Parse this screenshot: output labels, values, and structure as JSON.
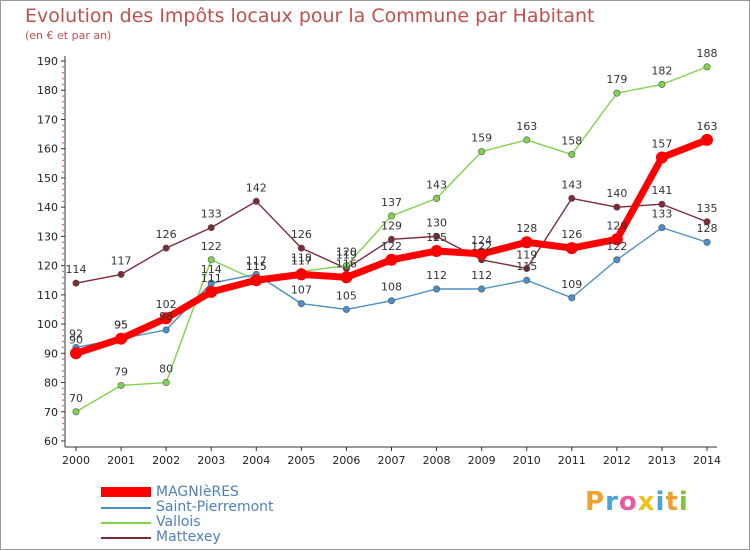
{
  "header": {
    "title": "Evolution des Impôts locaux pour la Commune par Habitant",
    "subtitle": "(en € et par an)"
  },
  "brand": {
    "letters": [
      "P",
      "r",
      "o",
      "x",
      "i",
      "t",
      "i"
    ],
    "colors": [
      "#f0a030",
      "#4aa3df",
      "#e85a9a",
      "#f0c020",
      "#4aa3df",
      "#f0a030",
      "#7fc241"
    ]
  },
  "chart_data": {
    "type": "line",
    "title": "Evolution des Impôts locaux pour la Commune par Habitant",
    "subtitle": "(en € et par an)",
    "xlabel": "",
    "ylabel": "",
    "x": [
      "2000",
      "2001",
      "2002",
      "2003",
      "2004",
      "2005",
      "2006",
      "2007",
      "2008",
      "2009",
      "2010",
      "2011",
      "2012",
      "2013",
      "2014"
    ],
    "ylim": [
      60,
      190
    ],
    "yticks": [
      60,
      70,
      80,
      90,
      100,
      110,
      120,
      130,
      140,
      150,
      160,
      170,
      180,
      190
    ],
    "grid": false,
    "legend_position": "bottom-left",
    "series": [
      {
        "name": "MAGNIèRES",
        "color": "#ff0000",
        "values": [
          90,
          95,
          102,
          111,
          115,
          117,
          116,
          122,
          125,
          124,
          128,
          126,
          129,
          157,
          163
        ],
        "labels": [
          "90",
          "95",
          "102",
          "111",
          "115",
          "117",
          "116",
          "122",
          "125",
          "124",
          "128",
          "126",
          "129",
          "157",
          "163"
        ]
      },
      {
        "name": "Saint-Pierremont",
        "color": "#4a90c8",
        "values": [
          92,
          95,
          98,
          114,
          117,
          107,
          105,
          108,
          112,
          112,
          115,
          109,
          122,
          133,
          128
        ],
        "labels": [
          "92",
          "95",
          "98",
          "114",
          "117",
          "107",
          "105",
          "108",
          "112",
          "112",
          "115",
          "109",
          "122",
          "133",
          "128"
        ]
      },
      {
        "name": "Vallois",
        "color": "#7fd34e",
        "values": [
          70,
          79,
          80,
          122,
          115,
          118,
          120,
          137,
          143,
          159,
          163,
          158,
          179,
          182,
          188
        ],
        "labels": [
          "70",
          "79",
          "80",
          "122",
          "115",
          "118",
          "120",
          "137",
          "143",
          "159",
          "163",
          "158",
          "179",
          "182",
          "188"
        ]
      },
      {
        "name": "Mattexey",
        "color": "#7b2c36",
        "values": [
          114,
          117,
          126,
          133,
          142,
          126,
          119,
          129,
          130,
          122,
          119,
          143,
          140,
          141,
          135
        ],
        "labels": [
          "114",
          "117",
          "126",
          "133",
          "142",
          "126",
          "119",
          "129",
          "130",
          "122",
          "119",
          "143",
          "140",
          "141",
          "135"
        ]
      }
    ]
  }
}
